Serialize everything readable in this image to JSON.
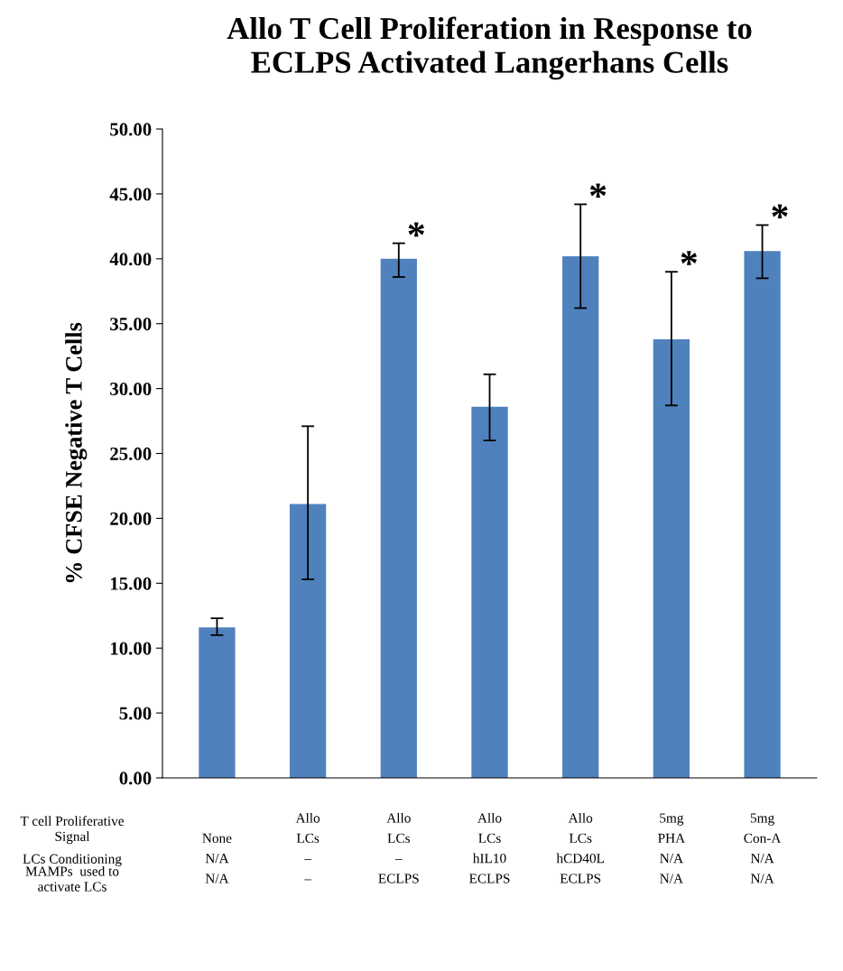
{
  "chart_data": {
    "type": "bar",
    "title": "Allo T Cell Proliferation in Response to\nECLPS Activated Langerhans Cells",
    "ylabel": "% CFSE Negative T Cells",
    "categories": [
      "None\nN/A\nN/A",
      "Allo\nLCs\n–\n–",
      "Allo\nLCs\n–\nECLPS",
      "Allo\nLCs\nhIL10\nECLPS",
      "Allo\nLCs\nhCD40L\nECLPS",
      "5mg\nPHA\nN/A\nN/A",
      "5mg\nCon-A\nN/A\nN/A"
    ],
    "values": [
      11.6,
      21.1,
      40.0,
      28.6,
      40.2,
      33.8,
      40.6
    ],
    "errors": [
      [
        11.0,
        12.3
      ],
      [
        15.3,
        27.1
      ],
      [
        38.6,
        41.2
      ],
      [
        26.0,
        31.1
      ],
      [
        36.2,
        44.2
      ],
      [
        28.7,
        39.0
      ],
      [
        38.5,
        42.6
      ]
    ],
    "color": "#4f81bd",
    "ylim": [
      0,
      50
    ],
    "yticks": [
      {
        "value": 0,
        "label": "0.00"
      },
      {
        "value": 5,
        "label": "5.00"
      },
      {
        "value": 10,
        "label": "10.00"
      },
      {
        "value": 15,
        "label": "15.00"
      },
      {
        "value": 20,
        "label": "20.00"
      },
      {
        "value": 25,
        "label": "25.00"
      },
      {
        "value": 30,
        "label": "30.00"
      },
      {
        "value": 35,
        "label": "35.00"
      },
      {
        "value": 40,
        "label": "40.00"
      },
      {
        "value": 45,
        "label": "45.00"
      },
      {
        "value": 50,
        "label": "50.00"
      }
    ],
    "grid": false,
    "value_labels": [
      null,
      null,
      "*",
      null,
      "*",
      "*",
      "*"
    ],
    "annotations": [
      "T cell Proliferative\nSignal",
      "LCs Conditioning",
      "MAMPs  used to\nactivate LCs"
    ]
  }
}
